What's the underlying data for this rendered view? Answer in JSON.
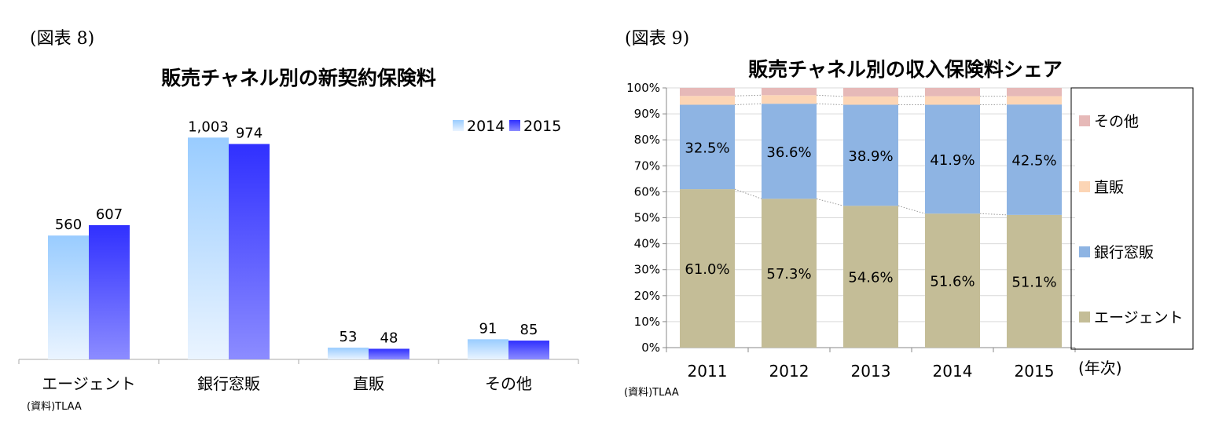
{
  "left": {
    "figure_label": "(図表 8)",
    "source": "(資料)TLAA",
    "colors": {
      "2014_top": "#99ccff",
      "2014_bottom": "#eaf4ff",
      "2015_top": "#3333ff",
      "2015_bottom": "#8888ff",
      "axis": "#aaaaaa"
    }
  },
  "right": {
    "figure_label": "(図表 9)",
    "source": "(資料)TLAA",
    "x_suffix": "(年次)",
    "colors": {
      "エージェント": "#c4bd97",
      "銀行窓販": "#8eb4e3",
      "直販": "#fcd5b5",
      "その他": "#e6b9b8",
      "grid": "#d9d9d9"
    }
  },
  "chart_data": [
    {
      "type": "bar",
      "title": "販売チャネル別の新契約保険料",
      "categories": [
        "エージェント",
        "銀行窓販",
        "直販",
        "その他"
      ],
      "series": [
        {
          "name": "2014",
          "values": [
            560,
            1003,
            53,
            91
          ],
          "labels": [
            "560",
            "1,003",
            "53",
            "91"
          ]
        },
        {
          "name": "2015",
          "values": [
            607,
            974,
            48,
            85
          ],
          "labels": [
            "607",
            "974",
            "48",
            "85"
          ]
        }
      ],
      "ylim": [
        0,
        1100
      ],
      "legend": "top-right",
      "grid": false
    },
    {
      "type": "bar",
      "stacked": true,
      "percent": true,
      "title": "販売チャネル別の収入保険料シェア",
      "categories": [
        "2011",
        "2012",
        "2013",
        "2014",
        "2015"
      ],
      "series": [
        {
          "name": "エージェント",
          "values": [
            61.0,
            57.3,
            54.6,
            51.6,
            51.1
          ],
          "labels": [
            "61.0%",
            "57.3%",
            "54.6%",
            "51.6%",
            "51.1%"
          ]
        },
        {
          "name": "銀行窓販",
          "values": [
            32.5,
            36.6,
            38.9,
            41.9,
            42.5
          ],
          "labels": [
            "32.5%",
            "36.6%",
            "38.9%",
            "41.9%",
            "42.5%"
          ]
        },
        {
          "name": "直販",
          "values": [
            3.4,
            3.3,
            3.2,
            3.3,
            3.2
          ]
        },
        {
          "name": "その他",
          "values": [
            3.1,
            2.8,
            3.3,
            3.2,
            3.2
          ]
        }
      ],
      "ylim": [
        0,
        100
      ],
      "yticks": [
        "0%",
        "10%",
        "20%",
        "30%",
        "40%",
        "50%",
        "60%",
        "70%",
        "80%",
        "90%",
        "100%"
      ],
      "legend": "right",
      "legend_order": [
        "その他",
        "直販",
        "銀行窓販",
        "エージェント"
      ],
      "grid": true
    }
  ]
}
